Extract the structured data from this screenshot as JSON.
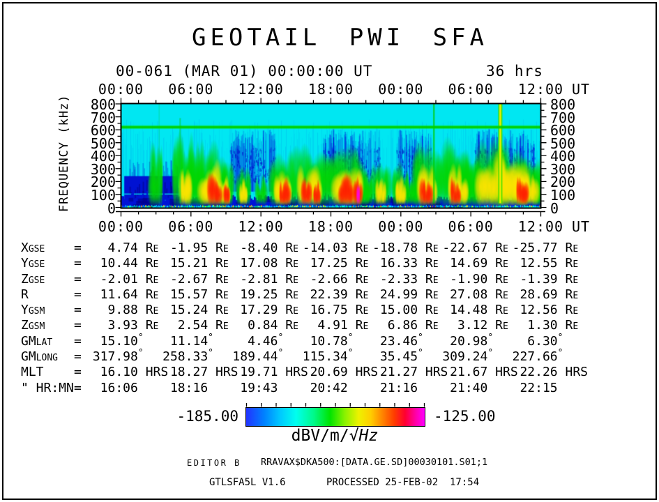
{
  "title": "GEOTAIL PWI SFA",
  "header": {
    "start_label": "00-061 (MAR 01) 00:00:00 UT",
    "duration_label": "36 hrs"
  },
  "axes": {
    "time_tick_labels": [
      "00:00",
      "06:00",
      "12:00",
      "18:00",
      "00:00",
      "06:00",
      "12:00"
    ],
    "time_unit": "UT",
    "freq_tick_labels": [
      "800",
      "700",
      "600",
      "500",
      "400",
      "300",
      "200",
      "100",
      "0"
    ],
    "freq_axis_title": "FREQUENCY (kHz)"
  },
  "chart_data": {
    "type": "heatmap",
    "title": "GEOTAIL PWI SFA",
    "xlabel": "UT",
    "ylabel": "FREQUENCY (kHz)",
    "x_range_hours": [
      0,
      36
    ],
    "x_major_tick_hours": 6,
    "x_minor_tick_hours": 1.5,
    "y_range_khz": [
      0,
      800
    ],
    "y_major_tick_khz": 100,
    "y_minor_tick_khz": 50,
    "colorbar": {
      "min_db": -185.0,
      "max_db": -125.0,
      "units": "dBV/m/√Hz"
    },
    "narrowband_line_khz": 620,
    "background_level": "cyan",
    "features": {
      "left_block": {
        "h0": 0.25,
        "h1": 4.85,
        "f0": 30,
        "f1": 240
      },
      "noise_clusters": [
        [
          9.3,
          13.2
        ],
        [
          17.3,
          22.2
        ],
        [
          23.6,
          26.6
        ],
        [
          30.3,
          35.5
        ]
      ],
      "greens": [
        [
          3.0,
          420,
          0.5
        ],
        [
          5.3,
          520,
          0.8
        ],
        [
          6.3,
          450,
          0.7
        ],
        [
          7.8,
          430,
          1.3
        ],
        [
          9.0,
          300,
          0.5
        ],
        [
          10.5,
          260,
          0.5
        ],
        [
          12.0,
          220,
          0.4
        ],
        [
          13.9,
          380,
          1.0
        ],
        [
          16.3,
          400,
          1.4
        ],
        [
          19.5,
          460,
          1.6
        ],
        [
          21.0,
          260,
          0.5
        ],
        [
          22.3,
          300,
          0.7
        ],
        [
          24.0,
          300,
          0.6
        ],
        [
          25.0,
          250,
          0.5
        ],
        [
          26.3,
          420,
          1.1
        ],
        [
          28.8,
          450,
          1.2
        ],
        [
          30.0,
          350,
          0.8
        ],
        [
          31.6,
          520,
          1.5
        ],
        [
          33.5,
          480,
          1.4
        ],
        [
          35.0,
          400,
          1.0
        ],
        [
          35.8,
          300,
          0.4
        ]
      ],
      "yellows": [
        [
          5.5,
          300,
          0.45
        ],
        [
          7.8,
          310,
          0.9
        ],
        [
          9.0,
          220,
          0.35
        ],
        [
          10.5,
          190,
          0.3
        ],
        [
          13.9,
          260,
          0.7
        ],
        [
          16.2,
          280,
          1.0
        ],
        [
          19.5,
          300,
          1.2
        ],
        [
          22.3,
          200,
          0.4
        ],
        [
          24.0,
          210,
          0.4
        ],
        [
          26.3,
          280,
          0.8
        ],
        [
          28.9,
          300,
          0.8
        ],
        [
          31.8,
          380,
          1.2
        ],
        [
          33.6,
          360,
          1.1
        ],
        [
          35.0,
          280,
          0.7
        ]
      ],
      "reds": [
        [
          8.0,
          230,
          0.55
        ],
        [
          9.05,
          190,
          0.25
        ],
        [
          14.0,
          200,
          0.45
        ],
        [
          15.9,
          210,
          0.4
        ],
        [
          16.8,
          200,
          0.3
        ],
        [
          19.3,
          220,
          0.6
        ],
        [
          20.3,
          230,
          0.35
        ],
        [
          26.2,
          200,
          0.5
        ],
        [
          28.7,
          210,
          0.45
        ],
        [
          34.4,
          200,
          0.5
        ]
      ],
      "magenta": [
        [
          20.35,
          170,
          0.12
        ]
      ],
      "spikes": [
        {
          "h": 3.25,
          "w": 1.5,
          "a": 0.3,
          "fTop": 800,
          "c": "#00cc50"
        },
        {
          "h": 5.05,
          "w": 2,
          "a": 0.55,
          "fTop": 690,
          "c": "#00cc30"
        },
        {
          "h": 26.85,
          "w": 2,
          "a": 0.85,
          "fTop": 800,
          "c": "#00cc00"
        },
        {
          "h": 32.55,
          "w": 6,
          "a": 0.9,
          "fTop": 800,
          "c": "#40e000",
          "core": {
            "w": 2.5,
            "c": "#f0f000"
          }
        }
      ]
    }
  },
  "ephemeris": {
    "columns": [
      "00:00",
      "06:00",
      "12:00",
      "18:00",
      "00:00",
      "06:00",
      "12:00"
    ],
    "rows": [
      {
        "label": "X",
        "sub": "GSE",
        "unit": "Re",
        "values": [
          "4.74",
          "-1.95",
          "-8.40",
          "-14.03",
          "-18.78",
          "-22.67",
          "-25.77"
        ]
      },
      {
        "label": "Y",
        "sub": "GSE",
        "unit": "Re",
        "values": [
          "10.44",
          "15.21",
          "17.08",
          "17.25",
          "16.33",
          "14.69",
          "12.55"
        ]
      },
      {
        "label": "Z",
        "sub": "GSE",
        "unit": "Re",
        "values": [
          "-2.01",
          "-2.67",
          "-2.81",
          "-2.66",
          "-2.33",
          "-1.90",
          "-1.39"
        ]
      },
      {
        "label": "R",
        "sub": "",
        "unit": "Re",
        "values": [
          "11.64",
          "15.57",
          "19.25",
          "22.39",
          "24.99",
          "27.08",
          "28.69"
        ]
      },
      {
        "label": "Y",
        "sub": "GSM",
        "unit": "Re",
        "values": [
          "9.88",
          "15.24",
          "17.29",
          "16.75",
          "15.00",
          "14.48",
          "12.56"
        ]
      },
      {
        "label": "Z",
        "sub": "GSM",
        "unit": "Re",
        "values": [
          "3.93",
          "2.54",
          "0.84",
          "4.91",
          "6.86",
          "3.12",
          "1.30"
        ]
      },
      {
        "label": "GM",
        "sub": "LAT",
        "unit": "°",
        "values": [
          "15.10",
          "11.14",
          "4.46",
          "10.78",
          "23.46",
          "20.98",
          "6.30"
        ]
      },
      {
        "label": "GM",
        "sub": "LONG",
        "unit": "°",
        "values": [
          "317.98",
          "258.33",
          "189.44",
          "115.34",
          "35.45",
          "309.24",
          "227.66"
        ]
      },
      {
        "label": "MLT",
        "sub": "",
        "unit": "HRS",
        "values": [
          "16.10",
          "18.27",
          "19.71",
          "20.69",
          "21.27",
          "21.67",
          "22.26"
        ]
      },
      {
        "label": "\" HR:MN",
        "sub": "",
        "unit": "",
        "values": [
          "16:06",
          "18:16",
          "19:43",
          "20:42",
          "21:16",
          "21:40",
          "22:15"
        ]
      }
    ]
  },
  "colorbar": {
    "min_label": "-185.00",
    "max_label": "-125.00",
    "units_prefix": "dBV/m/√",
    "units_hz": "Hz"
  },
  "footer": {
    "editor": "EDITOR B",
    "file": "RRAVAX$DKA500:[DATA.GE.SD]00030101.S01;1",
    "program": "GTLSFA5L V1.6",
    "processed": "PROCESSED 25-FEB-02  17:54"
  }
}
